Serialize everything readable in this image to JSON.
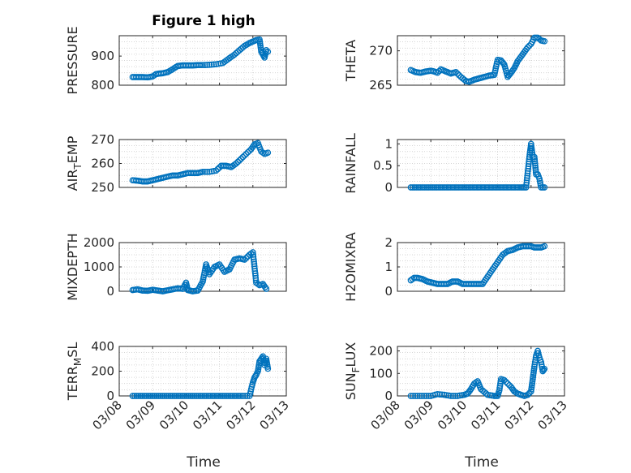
{
  "figure": {
    "title": "Figure 1 high",
    "xlabel": "Time",
    "marker_color": "#0072BD"
  },
  "chart_data": [
    {
      "type": "scatter",
      "panel": "pressure",
      "ylabel": "PRESSURE",
      "title": "Figure 1 high",
      "xlim": [
        0,
        5
      ],
      "ylim": [
        800,
        970
      ],
      "yticks": [
        800,
        900
      ],
      "xtick_labels": [],
      "grid": true,
      "x": [
        0.4,
        0.55,
        0.7,
        0.85,
        1.0,
        1.1,
        1.2,
        1.3,
        1.45,
        1.6,
        1.75,
        1.9,
        2.05,
        2.2,
        2.35,
        2.5,
        2.7,
        2.9,
        3.1,
        3.3,
        3.45,
        3.6,
        3.75,
        3.9,
        4.0,
        4.1,
        4.2,
        4.25,
        4.3,
        4.35,
        4.4,
        4.45
      ],
      "y": [
        828,
        828,
        828,
        827,
        830,
        838,
        840,
        841,
        845,
        855,
        866,
        868,
        868,
        868,
        869,
        869,
        870,
        872,
        876,
        893,
        905,
        920,
        935,
        945,
        950,
        955,
        957,
        915,
        905,
        895,
        920,
        915
      ]
    },
    {
      "type": "scatter",
      "panel": "theta",
      "ylabel": "THETA",
      "xlim": [
        0,
        5
      ],
      "ylim": [
        265,
        272.2
      ],
      "yticks": [
        265,
        270
      ],
      "xtick_labels": [],
      "grid": true,
      "x": [
        0.4,
        0.55,
        0.7,
        0.85,
        1.0,
        1.1,
        1.2,
        1.3,
        1.45,
        1.6,
        1.75,
        1.9,
        2.05,
        2.15,
        2.3,
        2.45,
        2.6,
        2.75,
        2.9,
        3.0,
        3.1,
        3.2,
        3.3,
        3.4,
        3.5,
        3.6,
        3.75,
        3.9,
        4.0,
        4.1,
        4.2,
        4.3,
        4.4
      ],
      "y": [
        267.2,
        266.9,
        266.8,
        267.0,
        267.1,
        267.0,
        266.8,
        267.3,
        267.0,
        266.7,
        266.9,
        266.2,
        265.6,
        265.5,
        265.8,
        266.0,
        266.2,
        266.4,
        266.5,
        268.7,
        268.6,
        268.0,
        266.2,
        266.8,
        267.5,
        268.5,
        269.5,
        270.5,
        271.0,
        271.9,
        271.9,
        271.5,
        271.4
      ]
    },
    {
      "type": "scatter",
      "panel": "air_temp",
      "ylabel": "AIR_TEMP",
      "xlim": [
        0,
        5
      ],
      "ylim": [
        250,
        270
      ],
      "yticks": [
        250,
        260,
        270
      ],
      "xtick_labels": [],
      "grid": true,
      "x": [
        0.4,
        0.55,
        0.7,
        0.85,
        1.0,
        1.15,
        1.3,
        1.45,
        1.6,
        1.75,
        1.9,
        2.05,
        2.2,
        2.35,
        2.5,
        2.7,
        2.9,
        3.05,
        3.2,
        3.35,
        3.5,
        3.65,
        3.8,
        3.95,
        4.05,
        4.15,
        4.25,
        4.35,
        4.45
      ],
      "y": [
        253,
        252.8,
        252.5,
        252.5,
        253,
        253.5,
        254,
        254.5,
        255,
        255,
        255.5,
        256,
        256,
        256,
        256.5,
        256.5,
        257,
        259,
        259,
        258.5,
        260,
        262,
        264,
        266,
        268,
        268.5,
        265,
        264,
        264.5
      ]
    },
    {
      "type": "scatter",
      "panel": "rainfall",
      "ylabel": "RAINFALL",
      "xlim": [
        0,
        5
      ],
      "ylim": [
        0,
        1.1
      ],
      "yticks": [
        0,
        0.5,
        1
      ],
      "xtick_labels": [],
      "grid": true,
      "x": [
        0.4,
        0.7,
        1.0,
        1.3,
        1.6,
        1.9,
        2.2,
        2.5,
        2.8,
        3.1,
        3.4,
        3.7,
        3.85,
        3.95,
        4.0,
        4.05,
        4.1,
        4.15,
        4.2,
        4.25,
        4.3,
        4.35,
        4.4
      ],
      "y": [
        0,
        0,
        0,
        0,
        0,
        0,
        0,
        0,
        0,
        0,
        0,
        0,
        0,
        0.7,
        1.0,
        0.7,
        0.7,
        0.3,
        0.3,
        0.2,
        0,
        0,
        0
      ]
    },
    {
      "type": "scatter",
      "panel": "mixdepth",
      "ylabel": "MIXDEPTH",
      "xlim": [
        0,
        5
      ],
      "ylim": [
        0,
        2000
      ],
      "yticks": [
        0,
        1000,
        2000
      ],
      "xtick_labels": [],
      "grid": true,
      "x": [
        0.4,
        0.55,
        0.7,
        0.85,
        1.0,
        1.15,
        1.3,
        1.45,
        1.6,
        1.75,
        1.9,
        2.0,
        2.05,
        2.2,
        2.35,
        2.5,
        2.6,
        2.7,
        2.85,
        3.0,
        3.15,
        3.3,
        3.45,
        3.6,
        3.75,
        3.9,
        4.0,
        4.1,
        4.2,
        4.3,
        4.4
      ],
      "y": [
        50,
        80,
        30,
        20,
        60,
        30,
        0,
        40,
        80,
        120,
        100,
        350,
        50,
        0,
        30,
        400,
        1100,
        700,
        1000,
        1100,
        800,
        900,
        1300,
        1350,
        1300,
        1500,
        1600,
        350,
        250,
        300,
        100
      ]
    },
    {
      "type": "scatter",
      "panel": "h2omixra",
      "ylabel": "H2OMIXRA",
      "xlim": [
        0,
        5
      ],
      "ylim": [
        0,
        2
      ],
      "yticks": [
        0,
        1,
        2
      ],
      "xtick_labels": [],
      "grid": true,
      "x": [
        0.4,
        0.5,
        0.6,
        0.75,
        0.9,
        1.05,
        1.2,
        1.35,
        1.5,
        1.65,
        1.8,
        1.95,
        2.1,
        2.25,
        2.4,
        2.55,
        2.7,
        2.85,
        3.0,
        3.15,
        3.3,
        3.45,
        3.6,
        3.75,
        3.9,
        4.0,
        4.1,
        4.2,
        4.3,
        4.4
      ],
      "y": [
        0.45,
        0.55,
        0.55,
        0.5,
        0.4,
        0.35,
        0.3,
        0.3,
        0.3,
        0.4,
        0.4,
        0.3,
        0.3,
        0.3,
        0.3,
        0.3,
        0.6,
        0.9,
        1.2,
        1.5,
        1.65,
        1.7,
        1.8,
        1.85,
        1.85,
        1.85,
        1.8,
        1.8,
        1.8,
        1.85
      ]
    },
    {
      "type": "scatter",
      "panel": "terr_msl",
      "ylabel": "TERR_MSL",
      "xlim": [
        0,
        5
      ],
      "ylim": [
        0,
        400
      ],
      "yticks": [
        0,
        200,
        400
      ],
      "xtick_labels": [
        "03/08",
        "03/09",
        "03/10",
        "03/11",
        "03/12",
        "03/13"
      ],
      "grid": true,
      "x": [
        0.4,
        0.7,
        1.0,
        1.3,
        1.6,
        1.9,
        2.2,
        2.5,
        2.8,
        3.1,
        3.4,
        3.7,
        3.9,
        4.0,
        4.05,
        4.1,
        4.15,
        4.2,
        4.25,
        4.3,
        4.35,
        4.4,
        4.45
      ],
      "y": [
        0,
        0,
        0,
        0,
        0,
        0,
        0,
        0,
        0,
        0,
        0,
        0,
        0,
        110,
        150,
        170,
        200,
        280,
        300,
        320,
        250,
        300,
        220
      ]
    },
    {
      "type": "scatter",
      "panel": "sun_flux",
      "ylabel": "SUN_FLUX",
      "xlim": [
        0,
        5
      ],
      "ylim": [
        0,
        220
      ],
      "yticks": [
        0,
        100,
        200
      ],
      "xtick_labels": [
        "03/08",
        "03/09",
        "03/10",
        "03/11",
        "03/12",
        "03/13"
      ],
      "grid": true,
      "x": [
        0.4,
        0.6,
        0.8,
        1.0,
        1.2,
        1.4,
        1.6,
        1.8,
        2.0,
        2.1,
        2.2,
        2.3,
        2.4,
        2.5,
        2.7,
        2.9,
        3.0,
        3.05,
        3.1,
        3.2,
        3.3,
        3.4,
        3.5,
        3.6,
        3.7,
        3.8,
        3.9,
        4.0,
        4.05,
        4.1,
        4.15,
        4.2,
        4.25,
        4.3,
        4.35,
        4.4
      ],
      "y": [
        0,
        0,
        0,
        0,
        8,
        5,
        0,
        0,
        5,
        10,
        30,
        55,
        65,
        30,
        5,
        0,
        0,
        25,
        75,
        70,
        55,
        40,
        20,
        10,
        5,
        0,
        5,
        20,
        75,
        130,
        180,
        200,
        170,
        150,
        110,
        120
      ]
    }
  ]
}
